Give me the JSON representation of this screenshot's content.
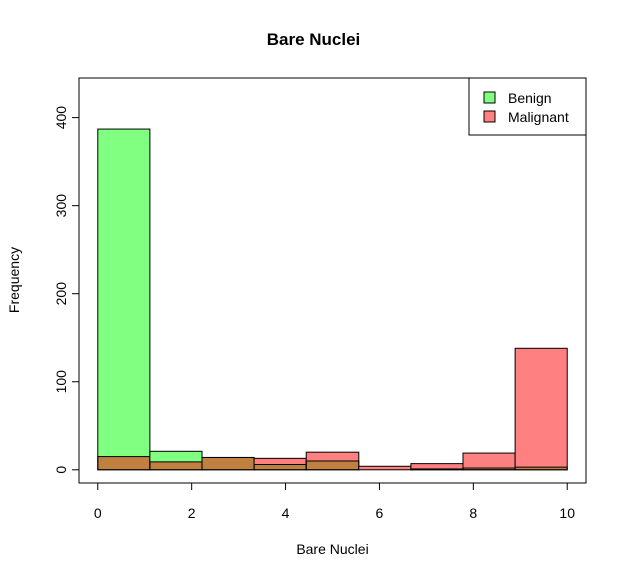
{
  "chart_data": {
    "type": "bar",
    "title": "Bare Nuclei",
    "xlabel": "Bare Nuclei",
    "ylabel": "Frequency",
    "xlim": [
      -0.4,
      10.4
    ],
    "ylim": [
      -15,
      445
    ],
    "xticks": [
      0,
      2,
      4,
      6,
      8,
      10
    ],
    "yticks": [
      0,
      100,
      200,
      300,
      400
    ],
    "bins": [
      [
        0,
        1.11
      ],
      [
        1.11,
        2.22
      ],
      [
        2.22,
        3.33
      ],
      [
        3.33,
        4.44
      ],
      [
        4.44,
        5.56
      ],
      [
        5.56,
        6.67
      ],
      [
        6.67,
        7.78
      ],
      [
        7.78,
        8.89
      ],
      [
        8.89,
        10
      ]
    ],
    "series": [
      {
        "name": "Benign",
        "color": "#80ff80",
        "values": [
          387,
          21,
          14,
          6,
          10,
          0,
          1,
          2,
          3
        ]
      },
      {
        "name": "Malignant",
        "color": "#ff8080",
        "values": [
          15,
          9,
          14,
          13,
          20,
          4,
          7,
          19,
          138
        ]
      }
    ],
    "overlap_color": "#bf8040",
    "legend_position": "top-right",
    "grid": false
  }
}
